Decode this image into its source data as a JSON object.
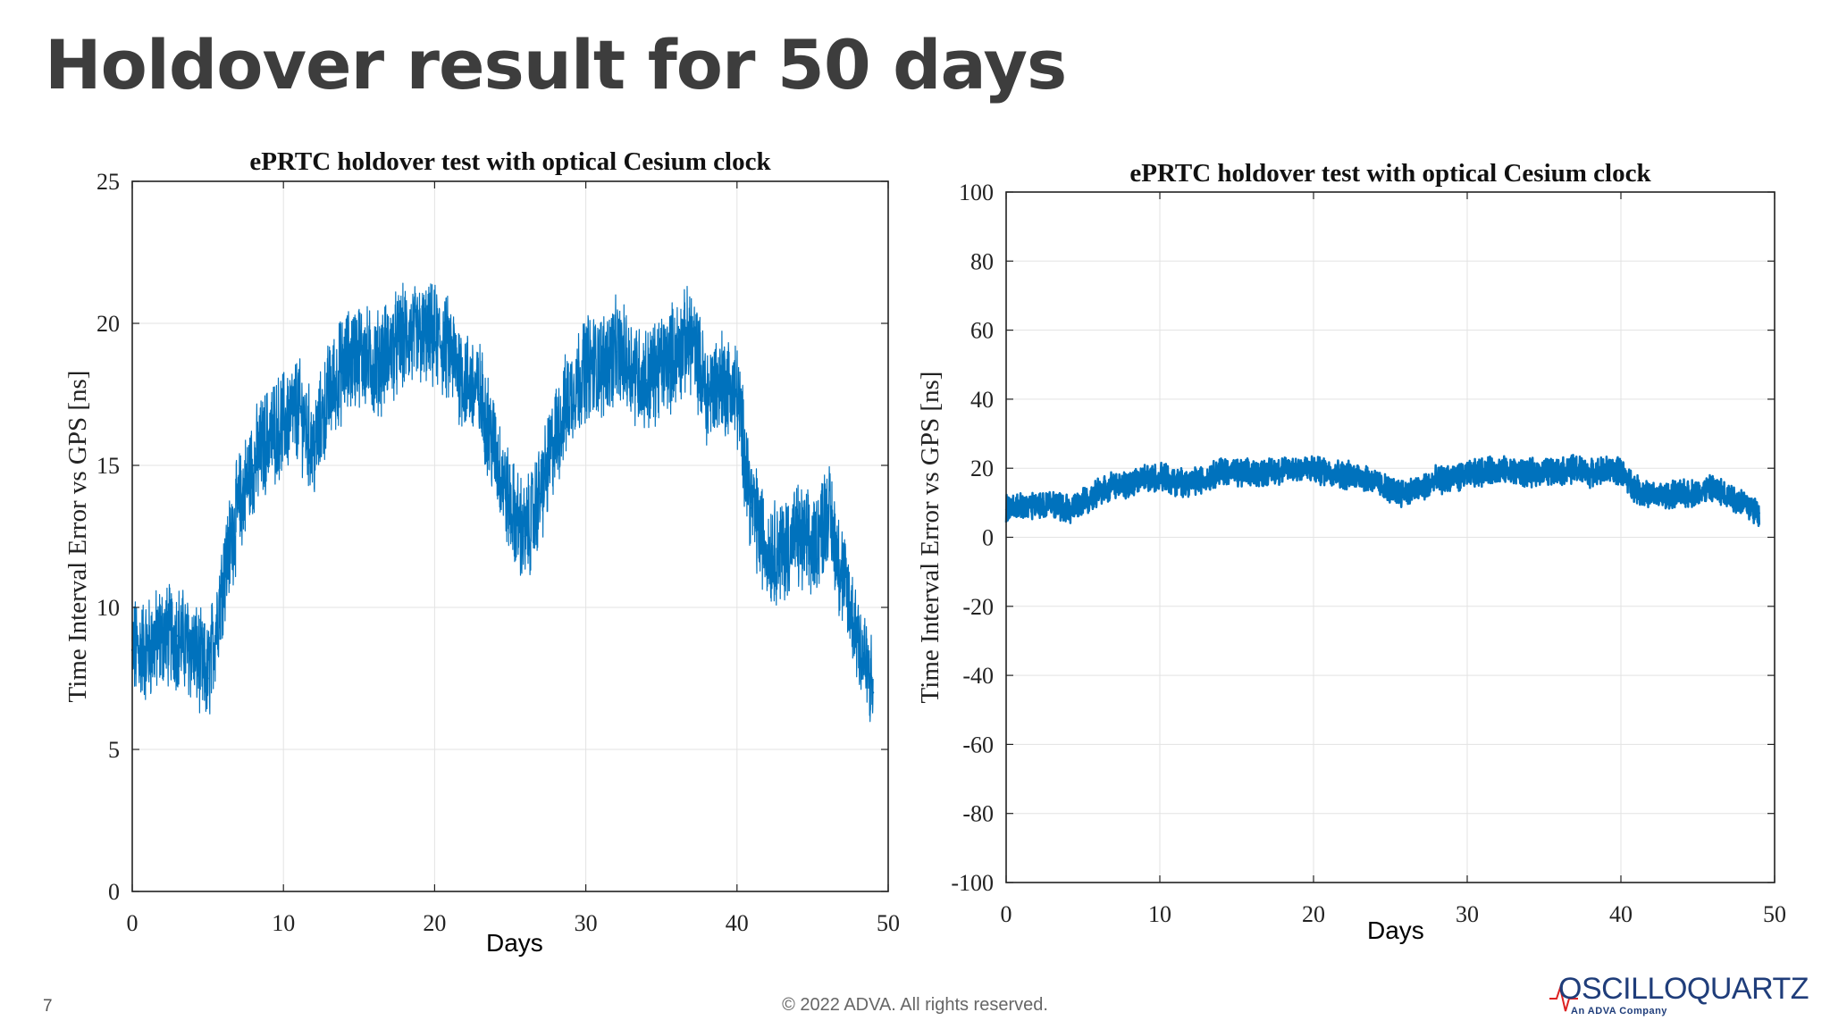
{
  "slide": {
    "title": "Holdover result for 50 days",
    "page_number": "7",
    "copyright": "© 2022 ADVA. All rights reserved.",
    "logo": {
      "name": "OSCILLOQUARTZ",
      "tagline": "An ADVA Company"
    }
  },
  "colors": {
    "series": "#0072bd",
    "title": "#3d3d3d",
    "logo": "#1f3d7a"
  },
  "chart_data": [
    {
      "type": "line",
      "title": "ePRTC holdover test with optical Cesium clock",
      "xlabel": "Days",
      "ylabel": "Time Interval Error vs GPS [ns]",
      "xlim": [
        0,
        50
      ],
      "ylim": [
        0,
        25
      ],
      "xticks": [
        0,
        10,
        20,
        30,
        40,
        50
      ],
      "yticks": [
        0,
        5,
        10,
        15,
        20,
        25
      ],
      "grid": true,
      "series": [
        {
          "x": [
            0,
            1,
            2,
            3,
            4,
            5,
            6,
            7,
            8,
            9,
            10,
            11,
            12,
            13,
            14,
            15,
            16,
            17,
            18,
            19,
            20,
            21,
            22,
            23,
            24,
            25,
            26,
            27,
            28,
            29,
            30,
            31,
            32,
            33,
            34,
            35,
            36,
            37,
            38,
            39,
            40,
            41,
            42,
            43,
            44,
            45,
            46,
            47,
            48,
            49
          ],
          "y": [
            8.5,
            8.5,
            9,
            9,
            8.5,
            7.5,
            11,
            13.5,
            15,
            16,
            16.5,
            17,
            15.5,
            17.5,
            18.5,
            19,
            18.5,
            19,
            19.5,
            19.5,
            19.5,
            19,
            18,
            17.5,
            15.5,
            13.5,
            12.5,
            14,
            16,
            17.5,
            18.5,
            18.5,
            19,
            18.5,
            18,
            18.5,
            19,
            19.5,
            17.5,
            18,
            17.5,
            13.5,
            12,
            12,
            12.5,
            12,
            13.5,
            11,
            9,
            7
          ]
        }
      ]
    },
    {
      "type": "line",
      "title": "ePRTC holdover test with optical Cesium clock",
      "xlabel": "Days",
      "ylabel": "Time Interval Error vs GPS [ns]",
      "xlim": [
        0,
        50
      ],
      "ylim": [
        -100,
        100
      ],
      "xticks": [
        0,
        10,
        20,
        30,
        40,
        50
      ],
      "yticks": [
        -100,
        -80,
        -60,
        -40,
        -20,
        0,
        20,
        40,
        60,
        80,
        100
      ],
      "grid": true,
      "series": [
        {
          "x": [
            0,
            1,
            2,
            3,
            4,
            5,
            6,
            7,
            8,
            9,
            10,
            11,
            12,
            13,
            14,
            15,
            16,
            17,
            18,
            19,
            20,
            21,
            22,
            23,
            24,
            25,
            26,
            27,
            28,
            29,
            30,
            31,
            32,
            33,
            34,
            35,
            36,
            37,
            38,
            39,
            40,
            41,
            42,
            43,
            44,
            45,
            46,
            47,
            48,
            49
          ],
          "y": [
            8,
            9,
            9.5,
            10,
            8,
            10,
            13,
            15,
            15,
            17,
            17.5,
            16,
            16,
            17,
            19.5,
            18.5,
            18.5,
            19,
            19.5,
            20,
            19.5,
            19,
            18,
            18,
            16,
            13.5,
            13,
            14,
            16.5,
            17,
            18,
            19,
            19.5,
            19,
            18.5,
            19,
            19,
            20,
            18.5,
            19.5,
            19,
            14,
            12,
            12,
            12.5,
            13,
            14,
            12,
            10,
            7
          ]
        }
      ]
    }
  ]
}
